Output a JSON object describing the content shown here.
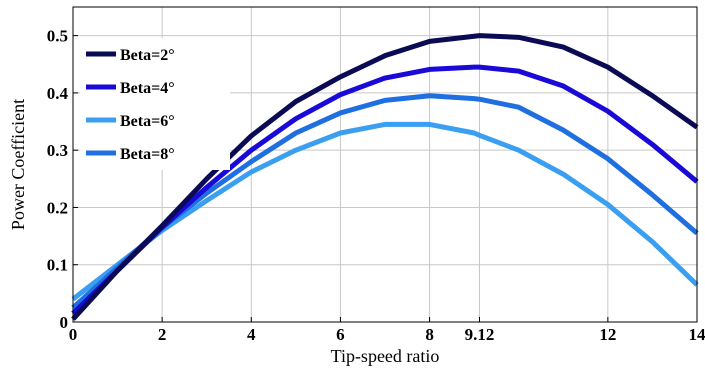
{
  "chart_data": {
    "type": "line",
    "title": "",
    "xlabel": "Tip-speed ratio",
    "ylabel": "Power Coefficient",
    "xlim": [
      0,
      14
    ],
    "ylim": [
      0,
      0.55
    ],
    "xticks": [
      {
        "value": 0,
        "label": "0"
      },
      {
        "value": 2,
        "label": "2"
      },
      {
        "value": 4,
        "label": "4"
      },
      {
        "value": 6,
        "label": "6"
      },
      {
        "value": 8,
        "label": "8"
      },
      {
        "value": 9.12,
        "label": "9.12"
      },
      {
        "value": 12,
        "label": "12"
      },
      {
        "value": 14,
        "label": "14"
      }
    ],
    "yticks": [
      {
        "value": 0,
        "label": "0"
      },
      {
        "value": 0.1,
        "label": "0.1"
      },
      {
        "value": 0.2,
        "label": "0.2"
      },
      {
        "value": 0.3,
        "label": "0.3"
      },
      {
        "value": 0.4,
        "label": "0.4"
      },
      {
        "value": 0.5,
        "label": "0.5"
      }
    ],
    "grid": true,
    "legend_position": "top-left",
    "x": [
      0,
      1,
      2,
      3,
      4,
      5,
      6,
      7,
      8,
      9,
      9.12,
      10,
      11,
      12,
      13,
      14
    ],
    "series": [
      {
        "name": "Beta=2°",
        "color": "#0a0a55",
        "values": [
          0.005,
          0.09,
          0.168,
          0.25,
          0.325,
          0.385,
          0.428,
          0.465,
          0.49,
          0.499,
          0.5,
          0.497,
          0.48,
          0.445,
          0.395,
          0.34
        ]
      },
      {
        "name": "Beta=4°",
        "color": "#1a0ad8",
        "values": [
          0.015,
          0.09,
          0.165,
          0.235,
          0.3,
          0.355,
          0.397,
          0.426,
          0.441,
          0.445,
          0.445,
          0.438,
          0.412,
          0.368,
          0.31,
          0.245
        ]
      },
      {
        "name": "Beta=6°",
        "color": "#3a9ff0",
        "values": [
          0.04,
          0.1,
          0.16,
          0.212,
          0.262,
          0.3,
          0.33,
          0.345,
          0.345,
          0.33,
          0.326,
          0.3,
          0.258,
          0.205,
          0.14,
          0.065
        ]
      },
      {
        "name": "Beta=8°",
        "color": "#1f6fe0",
        "values": [
          0.025,
          0.095,
          0.165,
          0.225,
          0.28,
          0.33,
          0.365,
          0.387,
          0.395,
          0.39,
          0.389,
          0.375,
          0.335,
          0.285,
          0.222,
          0.155
        ]
      }
    ]
  }
}
